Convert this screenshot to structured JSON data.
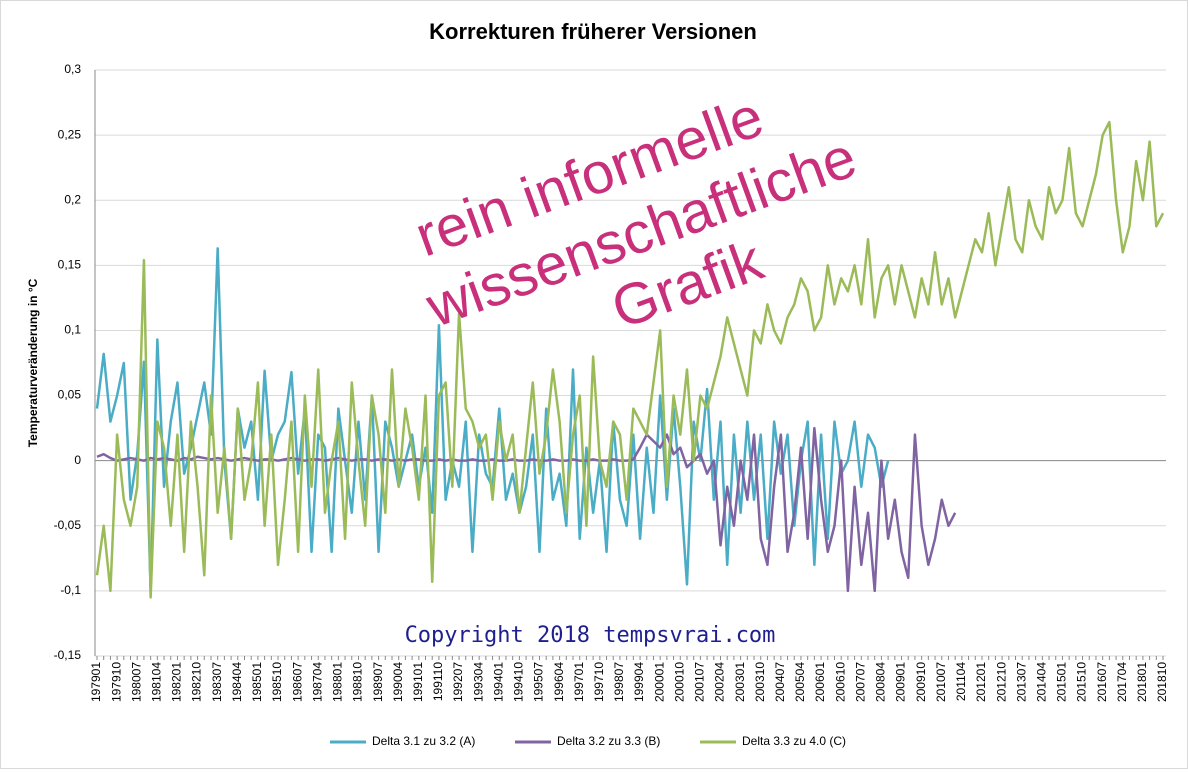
{
  "chart_data": {
    "type": "line",
    "title": "Korrekturen früherer Versionen",
    "y_label": "Temperaturveränderung in °C",
    "annotations": [
      "rein informelle",
      "wissenschaftliche",
      "Grafik"
    ],
    "copyright": "Copyright 2018 tempsvrai.com",
    "ylim": [
      -0.15,
      0.3
    ],
    "yticks": [
      {
        "value": -0.15,
        "label": "-0,15"
      },
      {
        "value": -0.1,
        "label": "-0,1"
      },
      {
        "value": -0.05,
        "label": "-0,05"
      },
      0,
      {
        "value": 0.05,
        "label": "0,05"
      },
      {
        "value": 0.1,
        "label": "0,1"
      },
      {
        "value": 0.15,
        "label": "0,15"
      },
      {
        "value": 0.2,
        "label": "0,2"
      },
      {
        "value": 0.25,
        "label": "0,25"
      },
      {
        "value": 0.3,
        "label": "0,3"
      }
    ],
    "grid": true,
    "legend": "bottom",
    "categories": [
      "197901",
      null,
      null,
      "197910",
      null,
      null,
      "198007",
      null,
      null,
      "198104",
      null,
      null,
      "198201",
      null,
      null,
      "198210",
      null,
      null,
      "198307",
      null,
      null,
      "198404",
      null,
      null,
      "198501",
      null,
      null,
      "198510",
      null,
      null,
      "198607",
      null,
      null,
      "198704",
      null,
      null,
      "198801",
      null,
      null,
      "198810",
      null,
      null,
      "198907",
      null,
      null,
      "199004",
      null,
      null,
      "199101",
      null,
      null,
      "199110",
      null,
      null,
      "199207",
      null,
      null,
      "199304",
      null,
      null,
      "199401",
      null,
      null,
      "199410",
      null,
      null,
      "199507",
      null,
      null,
      "199604",
      null,
      null,
      "199701",
      null,
      null,
      "199710",
      null,
      null,
      "199807",
      null,
      null,
      "199904",
      null,
      null,
      "200001",
      null,
      null,
      "200010",
      null,
      null,
      "200107",
      null,
      null,
      "200204",
      null,
      null,
      "200301",
      null,
      null,
      "200310",
      null,
      null,
      "200407",
      null,
      null,
      "200504",
      null,
      null,
      "200601",
      null,
      null,
      "200610",
      null,
      null,
      "200707",
      null,
      null,
      "200804",
      null,
      null,
      "200901",
      null,
      null,
      "200910",
      null,
      null,
      "201007",
      null,
      null,
      "201104",
      null,
      null,
      "201201",
      null,
      null,
      "201210",
      null,
      null,
      "201307",
      null,
      null,
      "201404",
      null,
      null,
      "201501",
      null,
      null,
      "201510",
      null,
      null,
      "201607",
      null,
      null,
      "201704",
      null,
      null,
      "201801",
      null,
      null,
      "201810"
    ],
    "series": [
      {
        "name": "Delta 3.1 zu 3.2 (A)",
        "color": "#4bacc6",
        "values": [
          0.04,
          0.082,
          0.03,
          0.05,
          0.075,
          -0.03,
          0.005,
          0.076,
          -0.1,
          0.093,
          -0.02,
          0.03,
          0.06,
          -0.01,
          0.01,
          0.035,
          0.06,
          0.02,
          0.163,
          0.0,
          -0.06,
          0.04,
          0.01,
          0.03,
          -0.03,
          0.069,
          0.0,
          0.02,
          0.03,
          0.068,
          -0.01,
          0.04,
          -0.07,
          0.02,
          0.01,
          -0.07,
          0.04,
          0.0,
          -0.04,
          0.03,
          -0.03,
          0.05,
          -0.07,
          0.03,
          0.01,
          -0.02,
          0.0,
          0.02,
          -0.02,
          0.01,
          -0.04,
          0.104,
          -0.03,
          0.0,
          -0.02,
          0.03,
          -0.07,
          0.02,
          -0.01,
          -0.02,
          0.04,
          -0.03,
          -0.01,
          -0.04,
          -0.02,
          0.02,
          -0.07,
          0.04,
          -0.03,
          -0.01,
          -0.05,
          0.07,
          -0.06,
          0.01,
          -0.04,
          0.0,
          -0.07,
          0.03,
          -0.03,
          -0.05,
          0.02,
          -0.06,
          0.01,
          -0.04,
          0.05,
          -0.03,
          0.04,
          -0.02,
          -0.095,
          0.03,
          0.0,
          0.055,
          -0.03,
          0.03,
          -0.08,
          0.02,
          -0.04,
          0.03,
          -0.03,
          0.02,
          -0.06,
          0.03,
          -0.01,
          0.02,
          -0.05,
          0.0,
          0.03,
          -0.08,
          0.02,
          -0.06,
          0.03,
          -0.01,
          0.0,
          0.03,
          -0.02,
          0.02,
          0.01,
          -0.02,
          0.0,
          null,
          null,
          null,
          null,
          null,
          null,
          null,
          null,
          null,
          null,
          null,
          null,
          null,
          null,
          null,
          null,
          null,
          null,
          null,
          null,
          null,
          null,
          null,
          null,
          null,
          null,
          null,
          null,
          null,
          null,
          null,
          null,
          null,
          null,
          null,
          null,
          null,
          null,
          null,
          null,
          null
        ]
      },
      {
        "name": "Delta 3.2 zu 3.3 (B)",
        "color": "#8064a2",
        "values": [
          0.003,
          0.005,
          0.002,
          0.0,
          0.001,
          0.002,
          0.001,
          0.0,
          0.002,
          0.001,
          0.002,
          0.001,
          0.0,
          0.002,
          0.001,
          0.003,
          0.002,
          0.001,
          0.002,
          0.001,
          0.0,
          0.001,
          0.002,
          0.001,
          0.0,
          0.001,
          0.001,
          0.0,
          0.001,
          0.002,
          0.001,
          0.0,
          0.001,
          0.001,
          0.0,
          0.001,
          0.002,
          0.001,
          0.0,
          0.001,
          0.001,
          0.0,
          0.001,
          0.001,
          0.0,
          0.001,
          0.0,
          0.001,
          0.001,
          0.0,
          0.0,
          0.001,
          0.0,
          0.001,
          0.0,
          0.0,
          0.001,
          0.0,
          0.0,
          0.001,
          0.0,
          0.0,
          0.001,
          0.0,
          0.0,
          0.001,
          0.0,
          0.0,
          0.001,
          0.0,
          0.0,
          0.001,
          0.0,
          0.0,
          0.001,
          0.0,
          0.0,
          0.001,
          0.0,
          0.0,
          0.001,
          0.01,
          0.02,
          0.015,
          0.01,
          0.02,
          0.005,
          0.01,
          -0.005,
          0.0,
          0.005,
          -0.01,
          0.0,
          -0.065,
          -0.02,
          -0.05,
          0.0,
          -0.03,
          0.02,
          -0.06,
          -0.08,
          -0.02,
          0.02,
          -0.07,
          -0.04,
          0.01,
          -0.06,
          0.025,
          -0.03,
          -0.07,
          -0.05,
          0.0,
          -0.1,
          -0.02,
          -0.08,
          -0.04,
          -0.1,
          0.0,
          -0.06,
          -0.03,
          -0.07,
          -0.09,
          0.02,
          -0.05,
          -0.08,
          -0.06,
          -0.03,
          -0.05,
          -0.04,
          null,
          null,
          null,
          null,
          null,
          null,
          null,
          null,
          null,
          null,
          null,
          null,
          null,
          null,
          null,
          null,
          null,
          null,
          null,
          null,
          null,
          null,
          null,
          null,
          null,
          null,
          null,
          null,
          null,
          null,
          null
        ]
      },
      {
        "name": "Delta 3.3 zu 4.0 (C)",
        "color": "#9bbb59",
        "values": [
          -0.088,
          -0.05,
          -0.1,
          0.02,
          -0.03,
          -0.05,
          -0.02,
          0.154,
          -0.105,
          0.03,
          0.01,
          -0.05,
          0.02,
          -0.07,
          0.03,
          -0.02,
          -0.088,
          0.05,
          -0.04,
          0.01,
          -0.06,
          0.04,
          -0.03,
          0.0,
          0.06,
          -0.05,
          0.02,
          -0.08,
          -0.03,
          0.03,
          -0.07,
          0.05,
          -0.02,
          0.07,
          -0.04,
          0.0,
          0.03,
          -0.06,
          0.06,
          0.0,
          -0.05,
          0.05,
          0.02,
          -0.04,
          0.07,
          -0.02,
          0.04,
          0.01,
          -0.03,
          0.05,
          -0.093,
          0.05,
          0.06,
          -0.02,
          0.113,
          0.04,
          0.03,
          0.01,
          0.02,
          -0.03,
          0.03,
          0.0,
          0.02,
          -0.04,
          0.01,
          0.06,
          -0.01,
          0.02,
          0.07,
          0.03,
          -0.04,
          0.02,
          0.05,
          -0.05,
          0.08,
          0.0,
          -0.02,
          0.03,
          0.02,
          -0.03,
          0.04,
          0.03,
          0.02,
          0.06,
          0.1,
          -0.02,
          0.05,
          0.02,
          0.07,
          0.0,
          0.05,
          0.04,
          0.06,
          0.08,
          0.11,
          0.09,
          0.07,
          0.05,
          0.1,
          0.09,
          0.12,
          0.1,
          0.09,
          0.11,
          0.12,
          0.14,
          0.13,
          0.1,
          0.11,
          0.15,
          0.12,
          0.14,
          0.13,
          0.15,
          0.12,
          0.17,
          0.11,
          0.14,
          0.15,
          0.12,
          0.15,
          0.13,
          0.11,
          0.14,
          0.12,
          0.16,
          0.12,
          0.14,
          0.11,
          0.13,
          0.15,
          0.17,
          0.16,
          0.19,
          0.15,
          0.18,
          0.21,
          0.17,
          0.16,
          0.2,
          0.18,
          0.17,
          0.21,
          0.19,
          0.2,
          0.24,
          0.19,
          0.18,
          0.2,
          0.22,
          0.25,
          0.26,
          0.2,
          0.16,
          0.18,
          0.23,
          0.2,
          0.245,
          0.18,
          0.19
        ]
      }
    ]
  }
}
